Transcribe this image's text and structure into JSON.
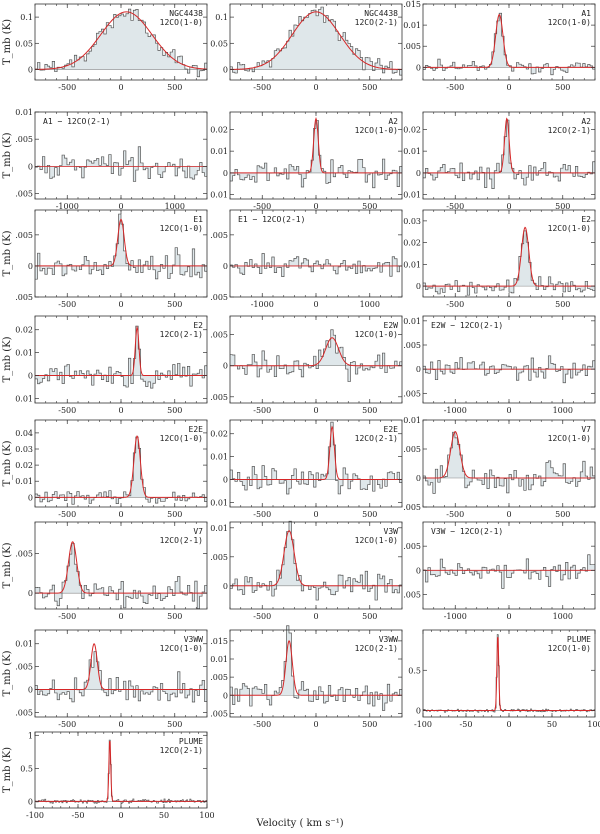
{
  "figure": {
    "ylabel": "T_mb (K)",
    "xlabel": "Velocity ( km s⁻¹)"
  },
  "colors": {
    "spectrum": "#555555",
    "fit": "#d62728",
    "fill": "#dfe7ea",
    "frame": "#333333"
  },
  "chart_data": [
    {
      "type": "line",
      "name": "NGC4438",
      "line": "12CO(1-0)",
      "xlim": [
        -800,
        800
      ],
      "ylim": [
        -0.02,
        0.125
      ],
      "xticks": [
        -500,
        0,
        500
      ],
      "yticks": [
        0,
        0.05,
        0.1
      ],
      "ytick_labels": [
        "0",
        "0.05",
        "0.1"
      ],
      "peak": 0.11,
      "center": 50,
      "fwhm": 560,
      "noise": 0.012,
      "fit": true,
      "shaded": true
    },
    {
      "type": "line",
      "name": "NGC4438",
      "line": "12CO(2-1)",
      "xlim": [
        -800,
        800
      ],
      "ylim": [
        -0.02,
        0.125
      ],
      "xticks": [
        -500,
        0,
        500
      ],
      "yticks": [
        0,
        0.05,
        0.1
      ],
      "ytick_labels": [
        "0",
        "0.05",
        "0.1"
      ],
      "peak": 0.11,
      "center": 0,
      "fwhm": 520,
      "noise": 0.012,
      "fit": true,
      "shaded": true
    },
    {
      "type": "line",
      "name": "A1",
      "line": "12CO(1-0)",
      "xlim": [
        -800,
        800
      ],
      "ylim": [
        -0.003,
        0.015
      ],
      "xticks": [
        -500,
        0,
        500
      ],
      "yticks": [
        0,
        0.005,
        0.01,
        0.015
      ],
      "ytick_labels": [
        "0",
        ".005",
        "0.01",
        ".015"
      ],
      "peak": 0.0125,
      "center": -90,
      "fwhm": 80,
      "noise": 0.0012,
      "fit": true,
      "shaded": true
    },
    {
      "type": "line",
      "name": "A1 − 12CO(2-1)",
      "line": "",
      "xlim": [
        -1600,
        1600
      ],
      "ylim": [
        -0.006,
        0.01
      ],
      "xticks": [
        -1000,
        0,
        1000
      ],
      "yticks": [
        -0.005,
        0,
        0.005,
        0.01
      ],
      "ytick_labels": [
        ".005",
        "0",
        ".005",
        "0.01"
      ],
      "peak": 0,
      "center": 0,
      "fwhm": 100,
      "noise": 0.0018,
      "fit": false,
      "shaded": true
    },
    {
      "type": "line",
      "name": "A2",
      "line": "12CO(1-0)",
      "xlim": [
        -800,
        800
      ],
      "ylim": [
        -0.012,
        0.028
      ],
      "xticks": [
        -500,
        0,
        500
      ],
      "yticks": [
        -0.01,
        0,
        0.01,
        0.02
      ],
      "ytick_labels": [
        "0.01",
        "0",
        "0.01",
        "0.02"
      ],
      "peak": 0.025,
      "center": 0,
      "fwhm": 50,
      "noise": 0.004,
      "fit": true,
      "shaded": true
    },
    {
      "type": "line",
      "name": "A2",
      "line": "12CO(2-1)",
      "xlim": [
        -800,
        800
      ],
      "ylim": [
        -0.012,
        0.028
      ],
      "xticks": [
        -500,
        0,
        500
      ],
      "yticks": [
        -0.01,
        0,
        0.01,
        0.02
      ],
      "ytick_labels": [
        "0.01",
        "0",
        "0.01",
        "0.02"
      ],
      "peak": 0.025,
      "center": -20,
      "fwhm": 50,
      "noise": 0.004,
      "fit": true,
      "shaded": true
    },
    {
      "type": "line",
      "name": "E1",
      "line": "12CO(1-0)",
      "xlim": [
        -800,
        800
      ],
      "ylim": [
        -0.005,
        0.009
      ],
      "xticks": [
        -500,
        0,
        500
      ],
      "yticks": [
        -0.005,
        0,
        0.005
      ],
      "ytick_labels": [
        ".005",
        "0",
        ".005"
      ],
      "peak": 0.0075,
      "center": 0,
      "fwhm": 70,
      "noise": 0.0015,
      "fit": true,
      "shaded": true
    },
    {
      "type": "line",
      "name": "E1 − 12CO(2-1)",
      "line": "",
      "xlim": [
        -1600,
        1600
      ],
      "ylim": [
        -0.005,
        0.009
      ],
      "xticks": [
        -1000,
        0,
        1000
      ],
      "yticks": [
        -0.005,
        0,
        0.005
      ],
      "ytick_labels": [
        ".005",
        "0",
        ".005"
      ],
      "peak": 0,
      "center": 0,
      "fwhm": 100,
      "noise": 0.0012,
      "fit": false,
      "shaded": true
    },
    {
      "type": "line",
      "name": "E2",
      "line": "12CO(1-0)",
      "xlim": [
        -800,
        800
      ],
      "ylim": [
        -0.005,
        0.035
      ],
      "xticks": [
        -500,
        0,
        500
      ],
      "yticks": [
        0,
        0.01,
        0.02,
        0.03
      ],
      "ytick_labels": [
        "0",
        "0.01",
        "0.02",
        "0.03"
      ],
      "peak": 0.027,
      "center": 150,
      "fwhm": 80,
      "noise": 0.003,
      "fit": true,
      "shaded": true
    },
    {
      "type": "line",
      "name": "E2",
      "line": "12CO(2-1)",
      "xlim": [
        -800,
        800
      ],
      "ylim": [
        -0.012,
        0.026
      ],
      "xticks": [
        -500,
        0,
        500
      ],
      "yticks": [
        -0.01,
        0,
        0.01,
        0.02
      ],
      "ytick_labels": [
        "0.01",
        "0",
        "0.01",
        "0.02"
      ],
      "peak": 0.021,
      "center": 150,
      "fwhm": 40,
      "noise": 0.004,
      "fit": true,
      "shaded": true
    },
    {
      "type": "line",
      "name": "E2W",
      "line": "12CO(1-0)",
      "xlim": [
        -800,
        800
      ],
      "ylim": [
        -0.006,
        0.008
      ],
      "xticks": [
        -500,
        0,
        500
      ],
      "yticks": [
        -0.005,
        0,
        0.005
      ],
      "ytick_labels": [
        ".005",
        "0",
        ".005"
      ],
      "peak": 0.0045,
      "center": 150,
      "fwhm": 140,
      "noise": 0.0015,
      "fit": true,
      "shaded": true
    },
    {
      "type": "line",
      "name": "E2W − 12CO(2-1)",
      "line": "",
      "xlim": [
        -1600,
        1600
      ],
      "ylim": [
        -0.007,
        0.011
      ],
      "xticks": [
        -1000,
        0,
        1000
      ],
      "yticks": [
        -0.005,
        0,
        0.005,
        0.01
      ],
      "ytick_labels": [
        ".005",
        "0",
        ".005",
        "0.01"
      ],
      "peak": 0,
      "center": 0,
      "fwhm": 100,
      "noise": 0.0018,
      "fit": false,
      "shaded": true
    },
    {
      "type": "line",
      "name": "E2E",
      "line": "12CO(1-0)",
      "xlim": [
        -800,
        800
      ],
      "ylim": [
        -0.006,
        0.048
      ],
      "xticks": [
        -500,
        0,
        500
      ],
      "yticks": [
        0,
        0.01,
        0.02,
        0.03,
        0.04
      ],
      "ytick_labels": [
        "0",
        "0.01",
        "0.02",
        "0.03",
        "0.04"
      ],
      "peak": 0.038,
      "center": 150,
      "fwhm": 70,
      "noise": 0.003,
      "fit": true,
      "shaded": true
    },
    {
      "type": "line",
      "name": "E2E",
      "line": "12CO(2-1)",
      "xlim": [
        -800,
        800
      ],
      "ylim": [
        -0.012,
        0.026
      ],
      "xticks": [
        -500,
        0,
        500
      ],
      "yticks": [
        -0.01,
        0,
        0.01,
        0.02
      ],
      "ytick_labels": [
        "0.01",
        "0",
        "0.01",
        "0.02"
      ],
      "peak": 0.023,
      "center": 150,
      "fwhm": 50,
      "noise": 0.004,
      "fit": true,
      "shaded": true
    },
    {
      "type": "line",
      "name": "V7",
      "line": "12CO(1-0)",
      "xlim": [
        -800,
        800
      ],
      "ylim": [
        -0.005,
        0.01
      ],
      "xticks": [
        -500,
        0,
        500
      ],
      "yticks": [
        -0.005,
        0,
        0.005,
        0.01
      ],
      "ytick_labels": [
        ".005",
        "0",
        ".005",
        "0.01"
      ],
      "peak": 0.008,
      "center": -500,
      "fwhm": 100,
      "noise": 0.0018,
      "fit": true,
      "shaded": true
    },
    {
      "type": "line",
      "name": "V7",
      "line": "12CO(2-1)",
      "xlim": [
        -800,
        800
      ],
      "ylim": [
        -0.002,
        0.009
      ],
      "xticks": [
        -500,
        0,
        500
      ],
      "yticks": [
        0,
        0.005
      ],
      "ytick_labels": [
        "0",
        ".005"
      ],
      "peak": 0.0065,
      "center": -450,
      "fwhm": 90,
      "noise": 0.0013,
      "fit": true,
      "shaded": true
    },
    {
      "type": "line",
      "name": "V3W",
      "line": "12CO(1-0)",
      "xlim": [
        -800,
        800
      ],
      "ylim": [
        -0.004,
        0.011
      ],
      "xticks": [
        -500,
        0,
        500
      ],
      "yticks": [
        0,
        0.005,
        0.01
      ],
      "ytick_labels": [
        "0",
        ".005",
        "0.01"
      ],
      "peak": 0.0095,
      "center": -250,
      "fwhm": 110,
      "noise": 0.0015,
      "fit": true,
      "shaded": true
    },
    {
      "type": "line",
      "name": "V3W − 12CO(2-1)",
      "line": "",
      "xlim": [
        -1600,
        1600
      ],
      "ylim": [
        -0.008,
        0.01
      ],
      "xticks": [
        -1000,
        0,
        1000
      ],
      "yticks": [
        -0.005,
        0,
        0.005
      ],
      "ytick_labels": [
        ".005",
        "0",
        ".005"
      ],
      "peak": 0,
      "center": 0,
      "fwhm": 100,
      "noise": 0.0018,
      "fit": false,
      "shaded": true
    },
    {
      "type": "line",
      "name": "V3WW",
      "line": "12CO(1-0)",
      "xlim": [
        -800,
        800
      ],
      "ylim": [
        -0.006,
        0.013
      ],
      "xticks": [
        -500,
        0,
        500
      ],
      "yticks": [
        -0.005,
        0,
        0.005,
        0.01
      ],
      "ytick_labels": [
        ".005",
        "0",
        ".005",
        "0.01"
      ],
      "peak": 0.01,
      "center": -250,
      "fwhm": 70,
      "noise": 0.0022,
      "fit": true,
      "shaded": true
    },
    {
      "type": "line",
      "name": "V3WW",
      "line": "12CO(2-1)",
      "xlim": [
        -800,
        800
      ],
      "ylim": [
        -0.006,
        0.018
      ],
      "xticks": [
        -500,
        0,
        500
      ],
      "yticks": [
        -0.005,
        0,
        0.005,
        0.01,
        0.015
      ],
      "ytick_labels": [
        ".005",
        "0",
        ".005",
        "0.01",
        ".015"
      ],
      "peak": 0.015,
      "center": -250,
      "fwhm": 70,
      "noise": 0.003,
      "fit": true,
      "shaded": true
    },
    {
      "type": "line",
      "name": "PLUME",
      "line": "12CO(1-0)",
      "xlim": [
        -100,
        100
      ],
      "ylim": [
        -0.08,
        1.0
      ],
      "xticks": [
        -100,
        -50,
        0,
        50,
        100
      ],
      "yticks": [
        0,
        0.5
      ],
      "ytick_labels": [
        "0",
        "0.5"
      ],
      "peak": 0.95,
      "center": -13,
      "fwhm": 2.5,
      "noise": 0.012,
      "fit": true,
      "shaded": false
    },
    {
      "type": "line",
      "name": "PLUME",
      "line": "12CO(2-1)",
      "xlim": [
        -100,
        100
      ],
      "ylim": [
        -0.1,
        1.05
      ],
      "xticks": [
        -100,
        -50,
        0,
        50,
        100
      ],
      "yticks": [
        0,
        0.5,
        1
      ],
      "ytick_labels": [
        "0",
        "0.5",
        "1"
      ],
      "peak": 0.95,
      "center": -13,
      "fwhm": 2.5,
      "noise": 0.02,
      "fit": true,
      "shaded": false
    }
  ]
}
